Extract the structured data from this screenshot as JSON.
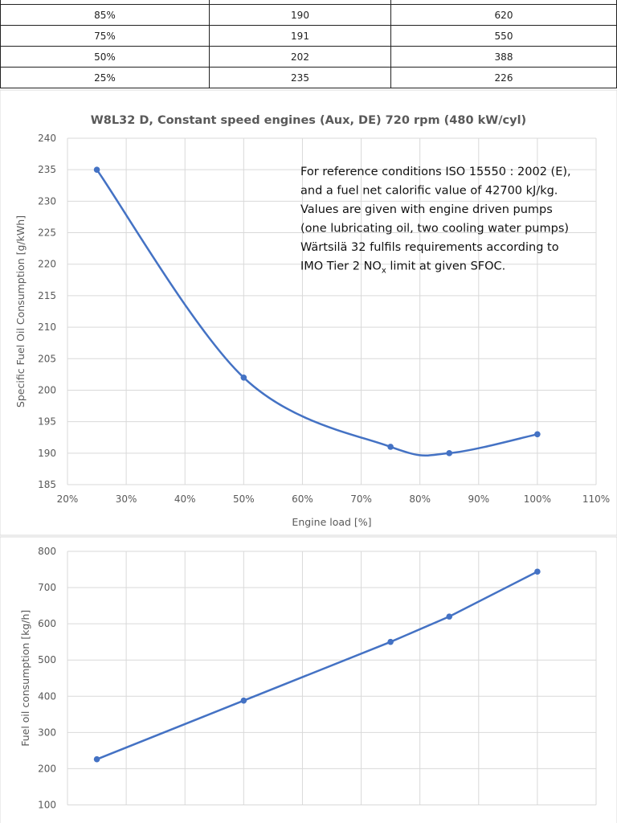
{
  "table": {
    "rows": [
      [
        "85%",
        "190",
        "620"
      ],
      [
        "75%",
        "191",
        "550"
      ],
      [
        "50%",
        "202",
        "388"
      ],
      [
        "25%",
        "235",
        "226"
      ]
    ]
  },
  "chart_data": [
    {
      "type": "line",
      "title": "W8L32 D, Constant speed engines (Aux, DE) 720 rpm (480 kW/cyl)",
      "xlabel": "Engine load [%]",
      "ylabel": "Specific Fuel Oil Consumption [g/kWh]",
      "x": [
        25,
        50,
        75,
        85,
        100
      ],
      "values": [
        235,
        202,
        191,
        190,
        193
      ],
      "xlim": [
        20,
        110
      ],
      "ylim": [
        185,
        240
      ],
      "xticks": [
        "20%",
        "30%",
        "40%",
        "50%",
        "60%",
        "70%",
        "80%",
        "90%",
        "100%",
        "110%"
      ],
      "yticks": [
        "185",
        "190",
        "195",
        "200",
        "205",
        "210",
        "215",
        "220",
        "225",
        "230",
        "235",
        "240"
      ],
      "grid": true,
      "smooth": true,
      "color": "#4472c4",
      "annotation": [
        "For reference conditions ISO 15550 : 2002 (E),",
        "and a fuel net calorific value of 42700 kJ/kg.",
        "Values are given with engine driven pumps",
        "(one lubricating oil, two cooling water pumps)",
        "Wärtsilä 32 fulfils requirements according to",
        "IMO Tier 2 NO",
        "x",
        " limit at given SFOC."
      ]
    },
    {
      "type": "line",
      "ylabel": "Fuel oil consumption [kg/h]",
      "x": [
        25,
        50,
        75,
        85,
        100
      ],
      "values": [
        226,
        388,
        550,
        620,
        744
      ],
      "xlim": [
        20,
        110
      ],
      "ylim": [
        100,
        800
      ],
      "yticks": [
        "100",
        "200",
        "300",
        "400",
        "500",
        "600",
        "700",
        "800"
      ],
      "grid": true,
      "color": "#4472c4"
    }
  ]
}
